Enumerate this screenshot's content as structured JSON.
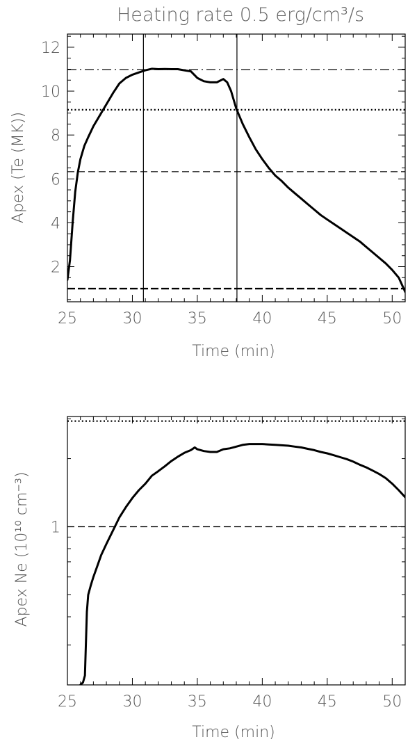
{
  "chart_data": [
    {
      "type": "line",
      "title": "Heating rate 0.5 erg/cm³/s",
      "xlabel": "Time (min)",
      "ylabel": "Apex (Te (MK))",
      "xlim": [
        25,
        51
      ],
      "ylim": [
        0.4,
        12.6
      ],
      "xticks": [
        25,
        30,
        35,
        40,
        45,
        50
      ],
      "xtick_labels": [
        "25",
        "30",
        "35",
        "40",
        "45",
        "50"
      ],
      "yticks": [
        2,
        4,
        6,
        8,
        10,
        12
      ],
      "ytick_labels": [
        "2",
        "4",
        "6",
        "8",
        "10",
        "12"
      ],
      "series": [
        {
          "x": [
            25.0,
            25.2,
            25.4,
            25.6,
            25.8,
            26.0,
            26.3,
            26.6,
            27.0,
            27.5,
            28.0,
            28.5,
            29.0,
            29.5,
            30.0,
            30.5,
            31.0,
            31.5,
            32.0,
            32.5,
            33.0,
            33.5,
            34.0,
            34.5,
            35.0,
            35.5,
            36.0,
            36.5,
            37.0,
            37.3,
            37.6,
            38.0,
            38.5,
            39.0,
            39.5,
            40.0,
            40.5,
            41.0,
            41.5,
            42.0,
            42.5,
            43.0,
            43.5,
            44.0,
            44.5,
            45.0,
            45.5,
            46.0,
            46.5,
            47.0,
            47.5,
            48.0,
            48.5,
            49.0,
            49.5,
            50.0,
            50.5,
            51.0
          ],
          "y": [
            1.4,
            2.3,
            4.0,
            5.4,
            6.3,
            6.9,
            7.5,
            7.9,
            8.4,
            8.9,
            9.4,
            9.9,
            10.35,
            10.6,
            10.75,
            10.85,
            10.95,
            11.02,
            11.0,
            11.01,
            11.0,
            11.0,
            10.95,
            10.9,
            10.6,
            10.45,
            10.4,
            10.4,
            10.55,
            10.4,
            10.0,
            9.2,
            8.5,
            7.9,
            7.35,
            6.9,
            6.5,
            6.15,
            5.9,
            5.6,
            5.35,
            5.1,
            4.85,
            4.6,
            4.35,
            4.15,
            3.95,
            3.75,
            3.55,
            3.35,
            3.15,
            2.9,
            2.65,
            2.4,
            2.15,
            1.85,
            1.5,
            0.85
          ]
        }
      ],
      "hlines": [
        {
          "y": 10.98,
          "style": "dash-dot"
        },
        {
          "y": 9.15,
          "style": "dotted"
        },
        {
          "y": 6.33,
          "style": "dashed"
        },
        {
          "y": 1.0,
          "style": "dashed-thick"
        }
      ],
      "vlines": [
        {
          "x": 30.85,
          "style": "solid"
        },
        {
          "x": 38.05,
          "style": "solid"
        }
      ],
      "grid": false
    },
    {
      "type": "line",
      "title": "",
      "xlabel": "Time (min)",
      "ylabel": "Apex Ne (10¹⁰ cm⁻³)",
      "yscale": "log",
      "xlim": [
        25,
        51
      ],
      "ylim": [
        0.2,
        3.07
      ],
      "xticks": [
        25,
        30,
        35,
        40,
        45,
        50
      ],
      "xtick_labels": [
        "25",
        "30",
        "35",
        "40",
        "45",
        "50"
      ],
      "yticks": [
        1
      ],
      "ytick_labels": [
        "1"
      ],
      "series": [
        {
          "x": [
            26.0,
            26.2,
            26.35,
            26.5,
            26.6,
            26.8,
            27.0,
            27.3,
            27.6,
            28.0,
            28.5,
            29.0,
            29.5,
            30.0,
            30.5,
            31.0,
            31.5,
            32.0,
            32.5,
            33.0,
            33.5,
            34.0,
            34.5,
            34.8,
            35.0,
            35.5,
            36.0,
            36.5,
            37.0,
            37.5,
            38.0,
            38.5,
            39.0,
            39.5,
            40.0,
            40.5,
            41.0,
            41.5,
            42.0,
            42.5,
            43.0,
            43.5,
            44.0,
            44.5,
            45.0,
            45.5,
            46.0,
            46.5,
            47.0,
            47.5,
            48.0,
            48.5,
            49.0,
            49.5,
            50.0,
            50.5,
            51.0
          ],
          "y": [
            0.2,
            0.205,
            0.22,
            0.42,
            0.5,
            0.55,
            0.6,
            0.67,
            0.75,
            0.84,
            0.96,
            1.1,
            1.22,
            1.34,
            1.45,
            1.55,
            1.68,
            1.76,
            1.85,
            1.95,
            2.04,
            2.12,
            2.18,
            2.24,
            2.2,
            2.16,
            2.14,
            2.14,
            2.2,
            2.22,
            2.26,
            2.3,
            2.32,
            2.32,
            2.32,
            2.31,
            2.3,
            2.29,
            2.28,
            2.26,
            2.24,
            2.21,
            2.18,
            2.14,
            2.11,
            2.07,
            2.03,
            1.99,
            1.94,
            1.88,
            1.83,
            1.77,
            1.71,
            1.64,
            1.55,
            1.45,
            1.35
          ]
        }
      ],
      "hlines": [
        {
          "y": 2.93,
          "style": "dotted"
        },
        {
          "y": 1.0,
          "style": "dashed"
        }
      ],
      "grid": false
    }
  ]
}
